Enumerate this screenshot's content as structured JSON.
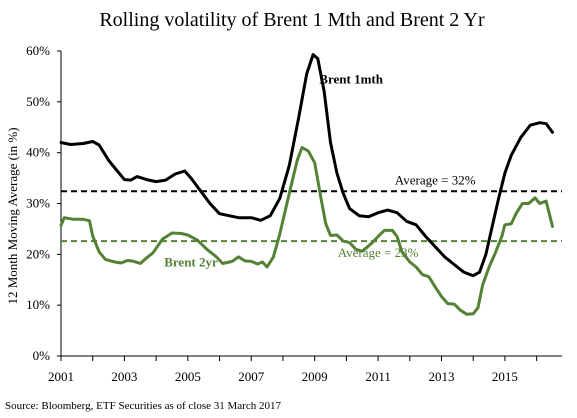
{
  "chart_data": {
    "type": "line",
    "title": "Rolling volatility of Brent 1 Mth and Brent 2 Yr",
    "ylabel": "12 Month Moving Average (in %)",
    "xlabel": "",
    "source": "Source: Bloomberg, ETF Securities as of close 31 March 2017",
    "xlim": [
      2001,
      2016.8
    ],
    "ylim": [
      0,
      60
    ],
    "x_ticks": [
      "2001",
      "2003",
      "2005",
      "2007",
      "2009",
      "2011",
      "2013",
      "2015"
    ],
    "y_ticks": [
      "0%",
      "10%",
      "20%",
      "30%",
      "40%",
      "50%",
      "60%"
    ],
    "grid": false,
    "series": [
      {
        "name": "Brent 1mth",
        "color": "#000000",
        "points": [
          [
            2001.0,
            42.0
          ],
          [
            2001.3,
            41.6
          ],
          [
            2001.7,
            41.8
          ],
          [
            2002.0,
            42.2
          ],
          [
            2002.2,
            41.5
          ],
          [
            2002.5,
            38.5
          ],
          [
            2002.8,
            36.2
          ],
          [
            2003.0,
            34.7
          ],
          [
            2003.2,
            34.6
          ],
          [
            2003.4,
            35.3
          ],
          [
            2003.7,
            34.7
          ],
          [
            2004.0,
            34.3
          ],
          [
            2004.3,
            34.6
          ],
          [
            2004.6,
            35.8
          ],
          [
            2004.9,
            36.4
          ],
          [
            2005.1,
            35.0
          ],
          [
            2005.4,
            32.5
          ],
          [
            2005.7,
            30.0
          ],
          [
            2006.0,
            28.0
          ],
          [
            2006.3,
            27.6
          ],
          [
            2006.6,
            27.2
          ],
          [
            2007.0,
            27.2
          ],
          [
            2007.3,
            26.7
          ],
          [
            2007.6,
            27.6
          ],
          [
            2007.9,
            31.0
          ],
          [
            2008.2,
            37.5
          ],
          [
            2008.5,
            47.0
          ],
          [
            2008.75,
            55.5
          ],
          [
            2008.95,
            59.3
          ],
          [
            2009.1,
            58.5
          ],
          [
            2009.3,
            52.0
          ],
          [
            2009.5,
            42.0
          ],
          [
            2009.7,
            36.0
          ],
          [
            2009.9,
            32.0
          ],
          [
            2010.1,
            29.0
          ],
          [
            2010.4,
            27.6
          ],
          [
            2010.7,
            27.4
          ],
          [
            2011.0,
            28.2
          ],
          [
            2011.3,
            28.7
          ],
          [
            2011.6,
            28.2
          ],
          [
            2011.9,
            26.5
          ],
          [
            2012.2,
            25.8
          ],
          [
            2012.5,
            23.5
          ],
          [
            2012.8,
            21.5
          ],
          [
            2013.1,
            19.5
          ],
          [
            2013.4,
            18.0
          ],
          [
            2013.7,
            16.5
          ],
          [
            2014.0,
            15.8
          ],
          [
            2014.2,
            16.5
          ],
          [
            2014.4,
            20.0
          ],
          [
            2014.6,
            25.5
          ],
          [
            2014.8,
            31.0
          ],
          [
            2015.0,
            36.0
          ],
          [
            2015.2,
            39.5
          ],
          [
            2015.5,
            43.0
          ],
          [
            2015.8,
            45.4
          ],
          [
            2016.1,
            45.9
          ],
          [
            2016.3,
            45.7
          ],
          [
            2016.5,
            44.0
          ]
        ]
      },
      {
        "name": "Brent 2yr",
        "color": "#548235",
        "points": [
          [
            2001.0,
            25.7
          ],
          [
            2001.1,
            27.2
          ],
          [
            2001.4,
            26.9
          ],
          [
            2001.7,
            26.9
          ],
          [
            2001.9,
            26.6
          ],
          [
            2002.0,
            23.6
          ],
          [
            2002.2,
            20.5
          ],
          [
            2002.4,
            19.0
          ],
          [
            2002.7,
            18.5
          ],
          [
            2002.9,
            18.3
          ],
          [
            2003.1,
            18.8
          ],
          [
            2003.3,
            18.6
          ],
          [
            2003.5,
            18.2
          ],
          [
            2003.7,
            19.3
          ],
          [
            2003.9,
            20.3
          ],
          [
            2004.2,
            23.0
          ],
          [
            2004.5,
            24.2
          ],
          [
            2004.8,
            24.1
          ],
          [
            2005.0,
            23.8
          ],
          [
            2005.3,
            22.8
          ],
          [
            2005.6,
            21.0
          ],
          [
            2005.9,
            19.5
          ],
          [
            2006.1,
            18.2
          ],
          [
            2006.4,
            18.6
          ],
          [
            2006.6,
            19.5
          ],
          [
            2006.8,
            18.7
          ],
          [
            2007.0,
            18.6
          ],
          [
            2007.2,
            18.1
          ],
          [
            2007.35,
            18.5
          ],
          [
            2007.5,
            17.5
          ],
          [
            2007.7,
            19.5
          ],
          [
            2007.9,
            24.0
          ],
          [
            2008.2,
            32.0
          ],
          [
            2008.45,
            38.5
          ],
          [
            2008.6,
            41.0
          ],
          [
            2008.8,
            40.3
          ],
          [
            2009.0,
            38.0
          ],
          [
            2009.2,
            31.0
          ],
          [
            2009.35,
            26.0
          ],
          [
            2009.5,
            23.7
          ],
          [
            2009.7,
            23.8
          ],
          [
            2009.9,
            22.6
          ],
          [
            2010.1,
            22.3
          ],
          [
            2010.3,
            21.0
          ],
          [
            2010.5,
            20.6
          ],
          [
            2010.8,
            22.2
          ],
          [
            2011.0,
            23.5
          ],
          [
            2011.2,
            24.7
          ],
          [
            2011.45,
            24.7
          ],
          [
            2011.6,
            23.5
          ],
          [
            2011.75,
            20.5
          ],
          [
            2012.0,
            18.5
          ],
          [
            2012.2,
            17.5
          ],
          [
            2012.4,
            16.0
          ],
          [
            2012.6,
            15.6
          ],
          [
            2012.8,
            13.6
          ],
          [
            2013.0,
            11.7
          ],
          [
            2013.2,
            10.3
          ],
          [
            2013.4,
            10.2
          ],
          [
            2013.6,
            9.0
          ],
          [
            2013.8,
            8.2
          ],
          [
            2014.0,
            8.3
          ],
          [
            2014.15,
            9.5
          ],
          [
            2014.3,
            14.0
          ],
          [
            2014.5,
            17.5
          ],
          [
            2014.7,
            20.3
          ],
          [
            2014.9,
            23.5
          ],
          [
            2015.0,
            25.8
          ],
          [
            2015.2,
            26.0
          ],
          [
            2015.35,
            28.0
          ],
          [
            2015.55,
            30.0
          ],
          [
            2015.75,
            30.0
          ],
          [
            2015.95,
            31.1
          ],
          [
            2016.1,
            30.0
          ],
          [
            2016.3,
            30.5
          ],
          [
            2016.5,
            25.5
          ]
        ]
      }
    ],
    "reference_lines": [
      {
        "name": "Average 1mth",
        "value": 32.4,
        "color": "#000000",
        "style": "dashed"
      },
      {
        "name": "Average 2yr",
        "value": 22.6,
        "color": "#548235",
        "style": "dashed"
      }
    ],
    "annotations": [
      {
        "text": "Brent 1mth",
        "color": "#000000",
        "bold": true
      },
      {
        "text": "Brent 2yr",
        "color": "#548235",
        "bold": true
      },
      {
        "text": "Average = 32%",
        "color": "#000000",
        "bold": false
      },
      {
        "text": "Average = 23%",
        "color": "#548235",
        "bold": false
      }
    ]
  }
}
